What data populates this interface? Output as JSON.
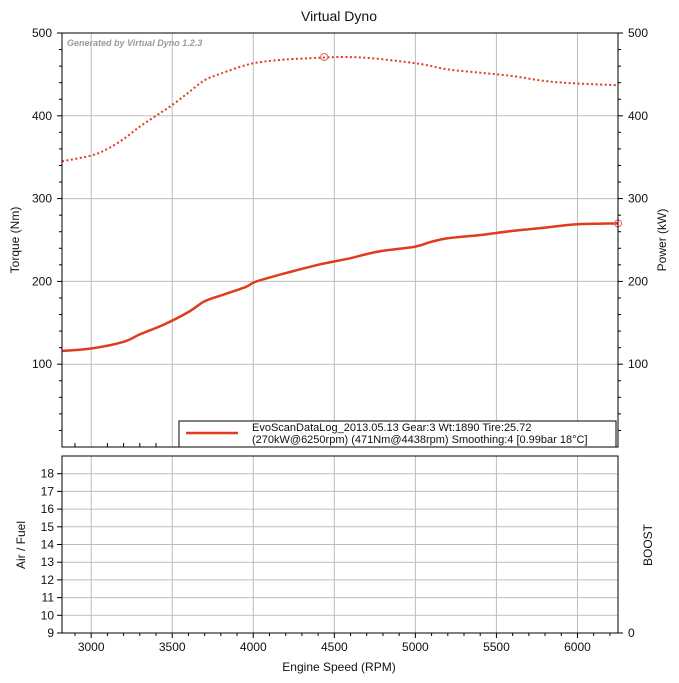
{
  "chart_data": {
    "type": "line",
    "title": "Virtual Dyno",
    "watermark": "Generated by Virtual Dyno 1.2.3",
    "xlabel": "Engine Speed (RPM)",
    "xlim": [
      2820,
      6250
    ],
    "x_ticks": [
      "3000",
      "3500",
      "4000",
      "4500",
      "5000",
      "5500",
      "6000"
    ],
    "x_tick_values": [
      3000,
      3500,
      4000,
      4500,
      5000,
      5500,
      6000
    ],
    "top_panel": {
      "ylabel_left": "Torque (Nm)",
      "ylabel_right": "Power (kW)",
      "ylim": [
        0,
        500
      ],
      "y_ticks_left": [
        "100",
        "200",
        "300",
        "400",
        "500"
      ],
      "y_ticks_right": [
        "100",
        "200",
        "300",
        "400",
        "500"
      ],
      "y_tick_values": [
        100,
        200,
        300,
        400,
        500
      ],
      "series": [
        {
          "style": "dotted",
          "color": "#e03c1c",
          "axis": "left",
          "x": [
            2820,
            3000,
            3100,
            3200,
            3300,
            3400,
            3500,
            3600,
            3700,
            3800,
            3950,
            4050,
            4200,
            4400,
            4550,
            4700,
            4900,
            5050,
            5200,
            5400,
            5600,
            5800,
            6000,
            6250
          ],
          "y": [
            345,
            352,
            360,
            372,
            387,
            400,
            413,
            428,
            443,
            451,
            461,
            465,
            468,
            470,
            471,
            470,
            466,
            462,
            456,
            452,
            448,
            442,
            439,
            437
          ]
        },
        {
          "style": "solid",
          "color": "#e03c1c",
          "axis": "right",
          "x": [
            2820,
            3000,
            3200,
            3300,
            3450,
            3600,
            3700,
            3800,
            3950,
            4020,
            4200,
            4400,
            4600,
            4700,
            4800,
            5000,
            5100,
            5200,
            5400,
            5600,
            5800,
            6000,
            6250
          ],
          "y": [
            116,
            119,
            127,
            136,
            148,
            163,
            176,
            183,
            193,
            200,
            210,
            220,
            228,
            233,
            237,
            242,
            248,
            252,
            256,
            261,
            265,
            269,
            270
          ]
        }
      ],
      "markers": [
        {
          "axis": "left",
          "x": 4438,
          "y": 471
        },
        {
          "axis": "right",
          "x": 6250,
          "y": 270
        }
      ],
      "legend": {
        "placement": "bottom-right",
        "line1": "EvoScanDataLog_2013.05.13 Gear:3 Wt:1890 Tire:25.72",
        "line2": "(270kW@6250rpm) (471Nm@4438rpm) Smoothing:4 [0.99bar 18°C]"
      }
    },
    "bottom_panel": {
      "ylabel_left": "Air / Fuel",
      "ylabel_right": "BOOST",
      "ylim": [
        9,
        19
      ],
      "y_ticks_left": [
        "9",
        "10",
        "11",
        "12",
        "13",
        "14",
        "15",
        "16",
        "17",
        "18"
      ],
      "y_tick_values": [
        9,
        10,
        11,
        12,
        13,
        14,
        15,
        16,
        17,
        18
      ],
      "y_ticks_right": [
        "0"
      ],
      "series": []
    }
  }
}
